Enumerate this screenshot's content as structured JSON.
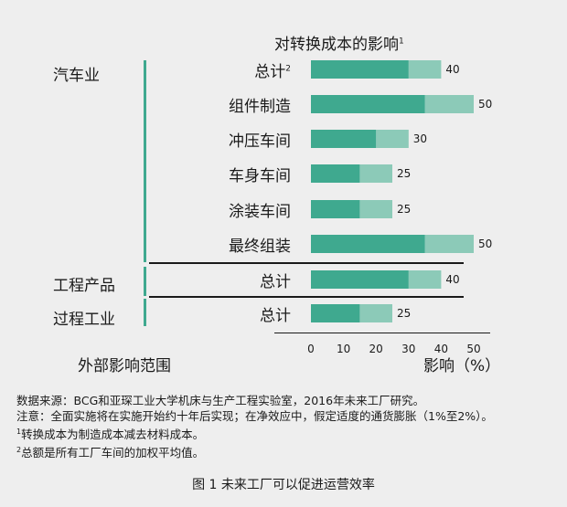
{
  "chart_data": {
    "type": "bar",
    "title": "对转换成本的影响",
    "title_note": "1",
    "xlabel": "影响（%）",
    "ylabel": "外部影响范围",
    "xlim": [
      0,
      50
    ],
    "x_ticks": [
      "0",
      "10",
      "20",
      "30",
      "40",
      "50"
    ],
    "colors": {
      "dark": "#3fa98f",
      "light": "#8ccab8",
      "divider": "#3fa98f"
    },
    "groups": [
      {
        "name": "汽车业",
        "rows": [
          0,
          1,
          2,
          3,
          4,
          5
        ]
      },
      {
        "name": "工程产品",
        "rows": [
          6
        ]
      },
      {
        "name": "过程工业",
        "rows": [
          7
        ]
      }
    ],
    "rows": [
      {
        "label": "总计",
        "note": "2",
        "dark": 30,
        "total": 40,
        "value_label": "40"
      },
      {
        "label": "组件制造",
        "note": "",
        "dark": 35,
        "total": 50,
        "value_label": "50"
      },
      {
        "label": "冲压车间",
        "note": "",
        "dark": 20,
        "total": 30,
        "value_label": "30"
      },
      {
        "label": "车身车间",
        "note": "",
        "dark": 15,
        "total": 25,
        "value_label": "25"
      },
      {
        "label": "涂装车间",
        "note": "",
        "dark": 15,
        "total": 25,
        "value_label": "25"
      },
      {
        "label": "最终组装",
        "note": "",
        "dark": 35,
        "total": 50,
        "value_label": "50"
      },
      {
        "label": "总计",
        "note": "",
        "dark": 30,
        "total": 40,
        "value_label": "40"
      },
      {
        "label": "总计",
        "note": "",
        "dark": 15,
        "total": 25,
        "value_label": "25"
      }
    ]
  },
  "notes": {
    "source": "数据来源：BCG和亚琛工业大学机床与生产工程实验室，2016年未来工厂研究。",
    "note": "注意：全面实施将在实施开始约十年后实现；在净效应中，假定适度的通货膨胀（1%至2%）。",
    "fn1_mark": "1",
    "fn1_text": "转换成本为制造成本减去材料成本。",
    "fn2_mark": "2",
    "fn2_text": "总额是所有工厂车间的加权平均值。"
  },
  "caption": "图 1 未来工厂可以促进运营效率"
}
